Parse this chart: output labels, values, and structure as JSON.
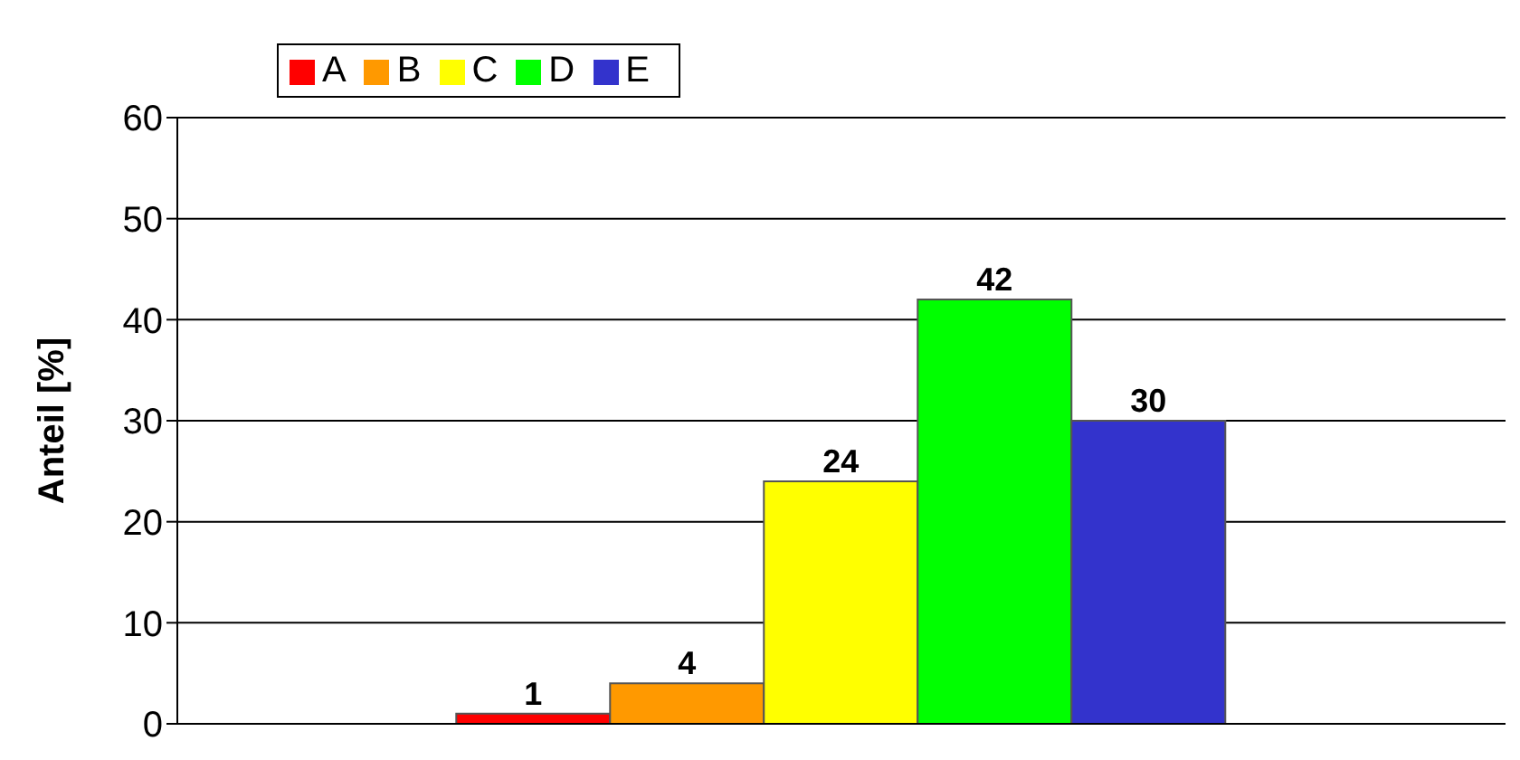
{
  "chart_data": {
    "type": "bar",
    "ylabel": "Anteil [%]",
    "categories": [
      null
    ],
    "series": [
      {
        "name": "A",
        "color": "#ff0000",
        "values": [
          1
        ]
      },
      {
        "name": "B",
        "color": "#ff9900",
        "values": [
          4
        ]
      },
      {
        "name": "C",
        "color": "#ffff00",
        "values": [
          24
        ]
      },
      {
        "name": "D",
        "color": "#00ff00",
        "values": [
          42
        ]
      },
      {
        "name": "E",
        "color": "#3333cc",
        "values": [
          30
        ]
      }
    ],
    "ylim": [
      0,
      60
    ],
    "yticks": [
      0,
      10,
      20,
      30,
      40,
      50,
      60
    ],
    "grid": "y",
    "legend": "top left",
    "data_labels": true
  }
}
